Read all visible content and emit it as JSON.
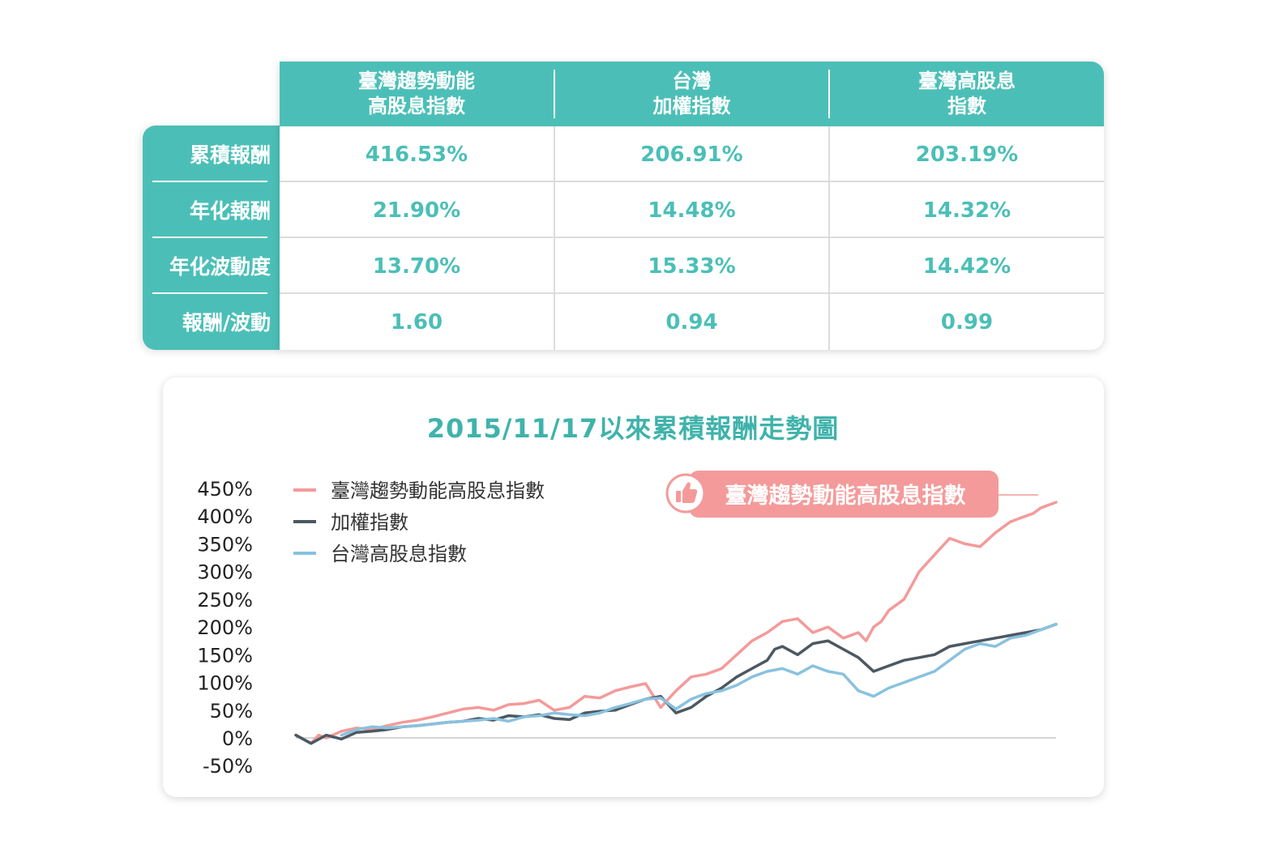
{
  "table": {
    "columns": [
      {
        "label": "臺灣趨勢動能\n高股息指數"
      },
      {
        "label": "台灣\n加權指數"
      },
      {
        "label": "臺灣高股息\n指數"
      }
    ],
    "rows": [
      {
        "label": "累積報酬",
        "values": [
          "416.53%",
          "206.91%",
          "203.19%"
        ]
      },
      {
        "label": "年化報酬",
        "values": [
          "21.90%",
          "14.48%",
          "14.32%"
        ]
      },
      {
        "label": "年化波動度",
        "values": [
          "13.70%",
          "15.33%",
          "14.42%"
        ]
      },
      {
        "label": "報酬/波動",
        "values": [
          "1.60",
          "0.94",
          "0.99"
        ]
      }
    ]
  },
  "callout": {
    "label": "臺灣趨勢動能高股息指數",
    "icon": "thumbs-up-icon"
  },
  "colors": {
    "teal": "#4bbfb7",
    "pink": "#f49a9a",
    "dark": "#4c5862",
    "blue": "#89c2de"
  },
  "chart_data": {
    "type": "line",
    "title": "2015/11/17以來累積報酬走勢圖",
    "ylim": [
      -50,
      450
    ],
    "yticks": [
      450,
      400,
      350,
      300,
      250,
      200,
      150,
      100,
      50,
      0,
      -50
    ],
    "ytick_labels": [
      "450%",
      "400%",
      "350%",
      "300%",
      "250%",
      "200%",
      "150%",
      "100%",
      "50%",
      "0%",
      "-50%"
    ],
    "grid": false,
    "legend": "top-left",
    "x_domain": [
      0,
      100
    ],
    "series": [
      {
        "name": "臺灣趨勢動能高股息指數",
        "color": "#f49a9a",
        "x": [
          0,
          2,
          3,
          4,
          6,
          8,
          10,
          12,
          14,
          16,
          18,
          20,
          22,
          24,
          26,
          28,
          30,
          32,
          34,
          36,
          38,
          40,
          42,
          44,
          46,
          48,
          50,
          52,
          54,
          56,
          58,
          60,
          62,
          64,
          66,
          68,
          70,
          72,
          74,
          75,
          76,
          77,
          78,
          80,
          82,
          84,
          86,
          88,
          90,
          92,
          94,
          95,
          96,
          97,
          98,
          99,
          100
        ],
        "values": [
          5,
          -10,
          5,
          0,
          12,
          18,
          15,
          22,
          28,
          32,
          38,
          45,
          52,
          55,
          50,
          60,
          62,
          68,
          50,
          55,
          75,
          72,
          85,
          92,
          98,
          55,
          85,
          110,
          115,
          125,
          150,
          175,
          190,
          210,
          215,
          190,
          200,
          180,
          190,
          175,
          200,
          210,
          230,
          250,
          300,
          330,
          360,
          350,
          345,
          370,
          390,
          395,
          400,
          405,
          415,
          420,
          425
        ]
      },
      {
        "name": "加權指數",
        "color": "#4c5862",
        "x": [
          0,
          2,
          4,
          6,
          8,
          10,
          12,
          14,
          16,
          18,
          20,
          22,
          24,
          26,
          28,
          30,
          32,
          34,
          36,
          38,
          40,
          42,
          44,
          46,
          48,
          50,
          52,
          54,
          56,
          58,
          60,
          62,
          63,
          64,
          66,
          68,
          70,
          72,
          74,
          76,
          78,
          80,
          82,
          84,
          86,
          88,
          90,
          92,
          94,
          96,
          98,
          100
        ],
        "values": [
          5,
          -10,
          5,
          -2,
          10,
          12,
          15,
          20,
          22,
          25,
          28,
          30,
          35,
          32,
          40,
          38,
          42,
          35,
          33,
          45,
          48,
          50,
          60,
          70,
          75,
          45,
          55,
          75,
          90,
          110,
          125,
          140,
          160,
          165,
          150,
          170,
          175,
          160,
          145,
          120,
          130,
          140,
          145,
          150,
          165,
          170,
          175,
          180,
          185,
          190,
          195,
          205
        ]
      },
      {
        "name": "台灣高股息指數",
        "color": "#89c2de",
        "x": [
          6,
          8,
          10,
          12,
          14,
          16,
          18,
          20,
          22,
          24,
          26,
          28,
          30,
          32,
          34,
          36,
          38,
          40,
          42,
          44,
          46,
          48,
          50,
          52,
          54,
          56,
          58,
          60,
          62,
          64,
          66,
          68,
          70,
          72,
          74,
          75,
          76,
          78,
          80,
          82,
          84,
          86,
          88,
          90,
          92,
          94,
          96,
          98,
          100
        ],
        "values": [
          5,
          15,
          20,
          18,
          20,
          22,
          25,
          28,
          30,
          32,
          35,
          30,
          38,
          40,
          45,
          42,
          40,
          45,
          55,
          62,
          70,
          72,
          52,
          70,
          80,
          85,
          95,
          110,
          120,
          125,
          115,
          130,
          120,
          115,
          85,
          80,
          75,
          90,
          100,
          110,
          120,
          140,
          160,
          170,
          165,
          180,
          185,
          195,
          205
        ]
      }
    ]
  }
}
